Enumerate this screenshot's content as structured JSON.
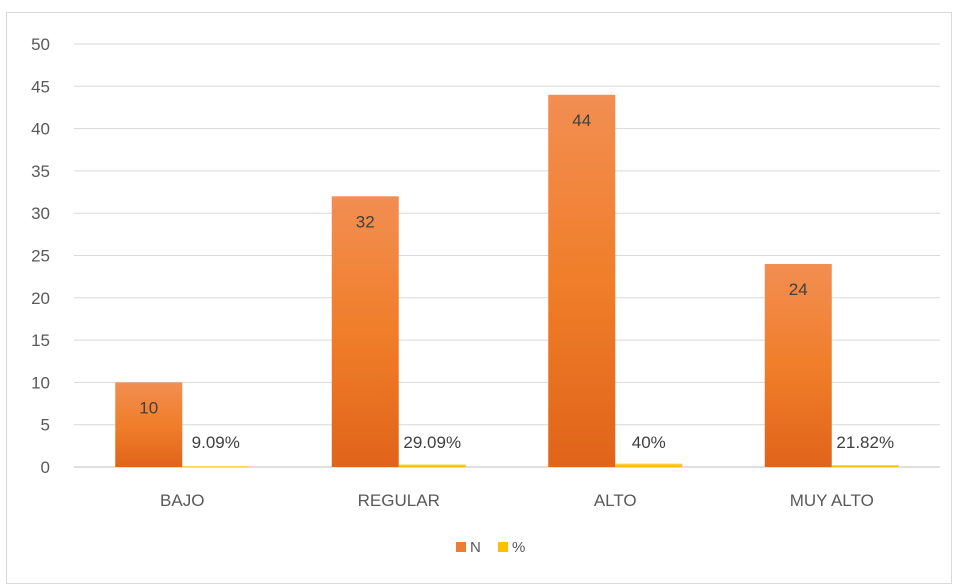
{
  "chart_data": {
    "type": "bar",
    "categories": [
      "BAJO",
      "REGULAR",
      "ALTO",
      "MUY ALTO"
    ],
    "ylim": [
      0,
      50
    ],
    "yticks": [
      0,
      5,
      10,
      15,
      20,
      25,
      30,
      35,
      40,
      45,
      50
    ],
    "grid": true,
    "legend_position": "bottom",
    "series": [
      {
        "name": "N",
        "values": [
          10,
          32,
          44,
          24
        ],
        "labels": [
          "10",
          "32",
          "44",
          "24"
        ],
        "color": "#ED7D31"
      },
      {
        "name": "%",
        "values": [
          0.0909,
          0.2909,
          0.4,
          0.2182
        ],
        "labels": [
          "9.09%",
          "29.09%",
          "40%",
          "21.82%"
        ],
        "color": "#FFC000"
      }
    ]
  }
}
